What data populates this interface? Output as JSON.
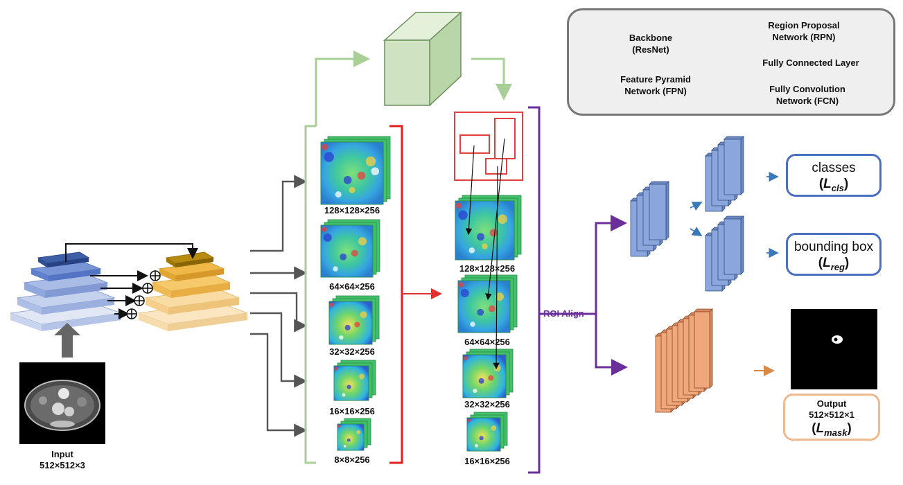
{
  "input": {
    "title": "Input",
    "size": "512×512×3"
  },
  "legend": {
    "backbone": "Backbone\n(ResNet)",
    "fpn": "Feature Pyramid\nNetwork (FPN)",
    "rpn": "Region Proposal\nNetwork (RPN)",
    "fc": "Fully Connected Layer",
    "fcn": "Fully Convolution\nNetwork (FCN)"
  },
  "feature_maps_left": [
    "128×128×256",
    "64×64×256",
    "32×32×256",
    "16×16×256",
    "8×8×256"
  ],
  "feature_maps_right": [
    "128×128×256",
    "64×64×256",
    "32×32×256",
    "16×16×256"
  ],
  "roi_align": "ROI Align",
  "outputs": {
    "classes": "classes",
    "classes_loss": "L",
    "classes_loss_sub": "cls",
    "bbox": "bounding box",
    "bbox_loss": "L",
    "bbox_loss_sub": "reg",
    "output_title": "Output",
    "output_size": "512×512×1",
    "mask_loss": "L",
    "mask_loss_sub": "mask"
  },
  "colors": {
    "backbone": "#8aa4d8",
    "fpn": "#f5c97a",
    "rpn": "#cfe3c3",
    "fc": "#8aa6dd",
    "fcn": "#f0a77a",
    "red_bracket": "#e02020",
    "purple": "#6a2f9a",
    "green_line": "#a8cf96",
    "blue_border": "#4a6fc0"
  }
}
